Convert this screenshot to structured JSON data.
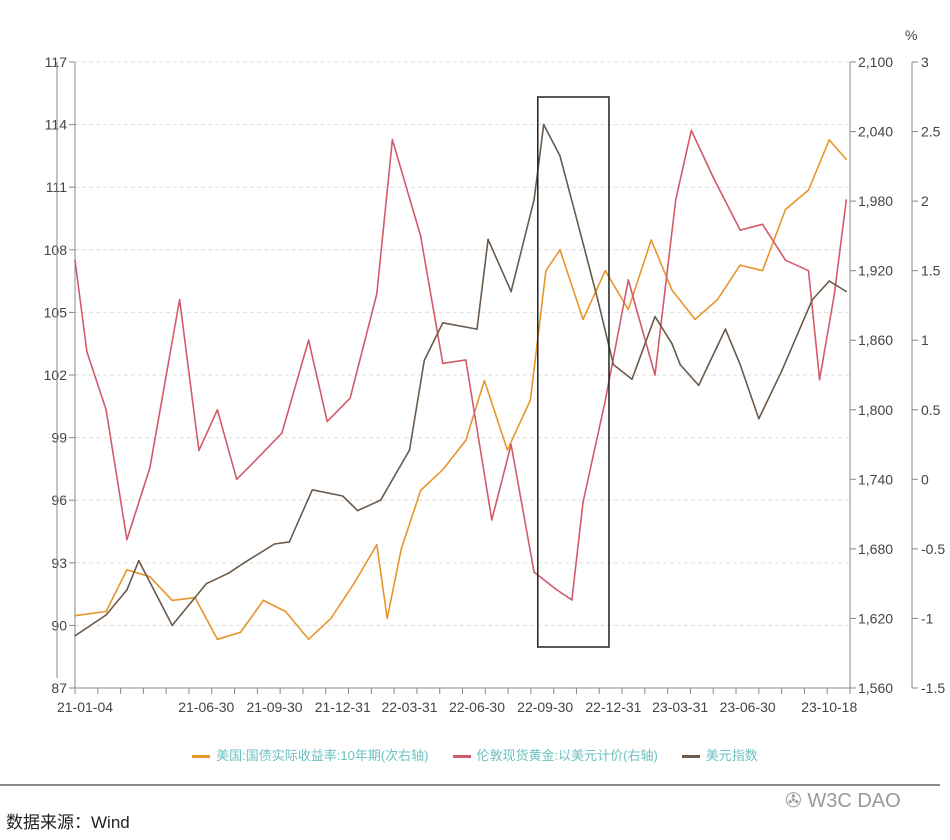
{
  "chart_data": {
    "type": "line",
    "unit_label": "%",
    "x_ticks": [
      "21-01-04",
      "21-06-30",
      "21-09-30",
      "21-12-31",
      "22-03-31",
      "22-06-30",
      "22-09-30",
      "22-12-31",
      "23-03-31",
      "23-06-30",
      "23-10-18"
    ],
    "axes": {
      "left": {
        "ylim": [
          87,
          117
        ],
        "ticks": [
          "87",
          "90",
          "93",
          "96",
          "99",
          "102",
          "105",
          "108",
          "111",
          "114",
          "117"
        ]
      },
      "right": {
        "ylim": [
          1560,
          2100
        ],
        "ticks": [
          "1,560",
          "1,620",
          "1,680",
          "1,740",
          "1,800",
          "1,860",
          "1,920",
          "1,980",
          "2,040",
          "2,100"
        ]
      },
      "secondary_right": {
        "ylim": [
          -1.5,
          3
        ],
        "ticks": [
          "-1.5",
          "-1",
          "-0.5",
          "0",
          "0.5",
          "1",
          "1.5",
          "2",
          "2.5",
          "3"
        ]
      }
    },
    "grid": true,
    "legend_position": "bottom",
    "highlight_box": {
      "from": "2022-09-20",
      "to": "2022-12-25",
      "color": "#222222"
    },
    "series": [
      {
        "name": "美国:国债实际收益率:10年期(次右轴)",
        "axis": "secondary_right",
        "color": "#e8952a",
        "x": [
          "2021-01-04",
          "2021-02-15",
          "2021-03-15",
          "2021-04-15",
          "2021-05-15",
          "2021-06-15",
          "2021-07-15",
          "2021-08-15",
          "2021-09-15",
          "2021-10-15",
          "2021-11-15",
          "2021-12-15",
          "2022-01-15",
          "2022-02-15",
          "2022-03-01",
          "2022-03-20",
          "2022-04-15",
          "2022-05-15",
          "2022-06-15",
          "2022-07-10",
          "2022-08-10",
          "2022-09-10",
          "2022-10-01",
          "2022-10-20",
          "2022-11-20",
          "2022-12-20",
          "2023-01-20",
          "2023-02-20",
          "2023-03-20",
          "2023-04-20",
          "2023-05-20",
          "2023-06-20",
          "2023-07-20",
          "2023-08-20",
          "2023-09-20",
          "2023-10-18",
          "2023-11-10"
        ],
        "values": [
          -0.98,
          -0.95,
          -0.65,
          -0.7,
          -0.87,
          -0.85,
          -1.15,
          -1.1,
          -0.87,
          -0.95,
          -1.15,
          -1.0,
          -0.75,
          -0.47,
          -1.0,
          -0.5,
          -0.08,
          0.07,
          0.28,
          0.71,
          0.21,
          0.57,
          1.5,
          1.65,
          1.15,
          1.5,
          1.22,
          1.72,
          1.36,
          1.15,
          1.29,
          1.54,
          1.5,
          1.94,
          2.08,
          2.44,
          2.3
        ]
      },
      {
        "name": "伦敦现货黄金:以美元计价(右轴)",
        "axis": "right",
        "color": "#d25a6a",
        "x": [
          "2021-01-04",
          "2021-01-20",
          "2021-02-15",
          "2021-03-15",
          "2021-04-15",
          "2021-05-25",
          "2021-06-20",
          "2021-07-15",
          "2021-08-10",
          "2021-09-10",
          "2021-10-10",
          "2021-11-15",
          "2021-12-10",
          "2022-01-10",
          "2022-02-15",
          "2022-03-08",
          "2022-04-15",
          "2022-05-15",
          "2022-06-15",
          "2022-07-20",
          "2022-08-15",
          "2022-09-15",
          "2022-10-15",
          "2022-11-05",
          "2022-11-20",
          "2022-12-20",
          "2023-01-20",
          "2023-02-25",
          "2023-03-25",
          "2023-04-15",
          "2023-05-15",
          "2023-06-20",
          "2023-07-20",
          "2023-08-20",
          "2023-09-20",
          "2023-10-05",
          "2023-10-25",
          "2023-11-10"
        ],
        "values": [
          1929,
          1850,
          1800,
          1688,
          1750,
          1895,
          1765,
          1800,
          1740,
          1760,
          1780,
          1860,
          1790,
          1810,
          1900,
          2033,
          1950,
          1840,
          1843,
          1705,
          1770,
          1660,
          1645,
          1636,
          1720,
          1808,
          1912,
          1830,
          1981,
          2041,
          2000,
          1955,
          1960,
          1929,
          1920,
          1826,
          1900,
          1981
        ]
      },
      {
        "name": "美元指数",
        "axis": "left",
        "color": "#6b5a4a",
        "x": [
          "2021-01-04",
          "2021-02-15",
          "2021-03-15",
          "2021-03-31",
          "2021-05-15",
          "2021-06-30",
          "2021-07-30",
          "2021-08-20",
          "2021-09-30",
          "2021-10-20",
          "2021-11-20",
          "2021-12-31",
          "2022-01-20",
          "2022-02-20",
          "2022-03-31",
          "2022-04-20",
          "2022-05-15",
          "2022-06-30",
          "2022-07-15",
          "2022-08-15",
          "2022-09-15",
          "2022-09-28",
          "2022-10-20",
          "2022-11-15",
          "2022-12-10",
          "2022-12-31",
          "2023-01-25",
          "2023-02-25",
          "2023-03-20",
          "2023-03-31",
          "2023-04-25",
          "2023-05-31",
          "2023-06-20",
          "2023-07-15",
          "2023-08-15",
          "2023-09-25",
          "2023-10-18",
          "2023-11-10"
        ],
        "values": [
          89.5,
          90.5,
          91.7,
          93.1,
          90.0,
          92.0,
          92.5,
          93.0,
          93.9,
          94.0,
          96.5,
          96.2,
          95.5,
          96.0,
          98.4,
          102.7,
          104.5,
          104.2,
          108.5,
          106.0,
          110.4,
          114.0,
          112.5,
          109.0,
          105.6,
          102.5,
          101.8,
          104.8,
          103.5,
          102.5,
          101.5,
          104.2,
          102.5,
          99.9,
          102.2,
          105.6,
          106.5,
          106.0
        ]
      }
    ]
  },
  "footer": {
    "source": "数据来源：Wind",
    "watermark": "W3C DAO"
  }
}
